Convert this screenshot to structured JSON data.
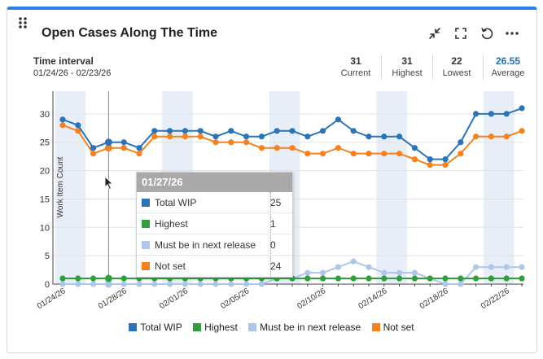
{
  "widget": {
    "title": "Open Cases Along The Time",
    "interval_label": "Time interval",
    "interval_range": "01/24/26 - 02/23/26",
    "icons": [
      "collapse-icon",
      "fullscreen-icon",
      "refresh-icon",
      "more-icon"
    ]
  },
  "stats": [
    {
      "value": "31",
      "label": "Current"
    },
    {
      "value": "31",
      "label": "Highest"
    },
    {
      "value": "22",
      "label": "Lowest"
    },
    {
      "value": "26.55",
      "label": "Average"
    }
  ],
  "colors": {
    "accent": "#2f80e6",
    "average": "#1f6fb5",
    "total_wip": "#2b74b7",
    "highest": "#2e9f3a",
    "must_be": "#aec7e8",
    "not_set": "#f5821f",
    "weekend_band": "#e8eef7"
  },
  "tooltip": {
    "date": "01/27/26",
    "rows": [
      {
        "name": "Total WIP",
        "value": "25",
        "color": "#2b74b7"
      },
      {
        "name": "Highest",
        "value": "1",
        "color": "#2e9f3a"
      },
      {
        "name": "Must be in next release",
        "value": "0",
        "color": "#aec7e8"
      },
      {
        "name": "Not set",
        "value": "24",
        "color": "#f5821f"
      }
    ]
  },
  "chart_data": {
    "type": "line",
    "title": "Open Cases Along The Time",
    "ylabel": "Work Item Count",
    "xlabel": "",
    "ylim": [
      0,
      34
    ],
    "yticks": [
      0,
      5,
      10,
      15,
      20,
      25,
      30
    ],
    "grid": true,
    "x": [
      "01/24/26",
      "01/25/26",
      "01/26/26",
      "01/27/26",
      "01/28/26",
      "01/29/26",
      "01/30/26",
      "01/31/26",
      "02/01/26",
      "02/02/26",
      "02/03/26",
      "02/04/26",
      "02/05/26",
      "02/06/26",
      "02/07/26",
      "02/08/26",
      "02/09/26",
      "02/10/26",
      "02/11/26",
      "02/12/26",
      "02/13/26",
      "02/14/26",
      "02/15/26",
      "02/16/26",
      "02/17/26",
      "02/18/26",
      "02/19/26",
      "02/20/26",
      "02/21/26",
      "02/22/26",
      "02/23/26"
    ],
    "xtick_labels": [
      "01/24/26",
      "01/28/26",
      "02/01/26",
      "02/05/26",
      "02/10/26",
      "02/14/26",
      "02/18/26",
      "02/22/26"
    ],
    "xtick_indices": [
      0,
      4,
      8,
      12,
      17,
      21,
      25,
      29
    ],
    "weekends": [
      [
        0,
        1
      ],
      [
        7,
        8
      ],
      [
        14,
        15
      ],
      [
        21,
        22
      ],
      [
        28,
        29
      ]
    ],
    "hover_index": 3,
    "series": [
      {
        "name": "Total WIP",
        "values": [
          29,
          28,
          24,
          25,
          25,
          24,
          27,
          27,
          27,
          27,
          26,
          27,
          26,
          26,
          27,
          27,
          26,
          27,
          29,
          27,
          26,
          26,
          26,
          24,
          22,
          22,
          25,
          30,
          30,
          30,
          31
        ]
      },
      {
        "name": "Highest",
        "values": [
          1,
          1,
          1,
          1,
          1,
          1,
          1,
          1,
          1,
          1,
          1,
          1,
          1,
          1,
          1,
          1,
          1,
          1,
          1,
          1,
          1,
          1,
          1,
          1,
          1,
          1,
          1,
          1,
          1,
          1,
          1
        ]
      },
      {
        "name": "Must be in next release",
        "values": [
          0,
          0,
          0,
          0,
          0,
          0,
          0,
          0,
          0,
          0,
          0,
          0,
          0,
          0,
          1,
          1,
          2,
          2,
          3,
          4,
          3,
          2,
          2,
          2,
          1,
          0,
          0,
          3,
          3,
          3,
          3
        ]
      },
      {
        "name": "Not set",
        "values": [
          28,
          27,
          23,
          24,
          24,
          23,
          26,
          26,
          26,
          26,
          25,
          25,
          25,
          24,
          24,
          24,
          23,
          23,
          24,
          23,
          23,
          23,
          23,
          22,
          21,
          21,
          23,
          26,
          26,
          26,
          27
        ]
      }
    ]
  },
  "legend": [
    {
      "name": "Total WIP",
      "color": "#2b74b7"
    },
    {
      "name": "Highest",
      "color": "#2e9f3a"
    },
    {
      "name": "Must be in next release",
      "color": "#aec7e8"
    },
    {
      "name": "Not set",
      "color": "#f5821f"
    }
  ]
}
